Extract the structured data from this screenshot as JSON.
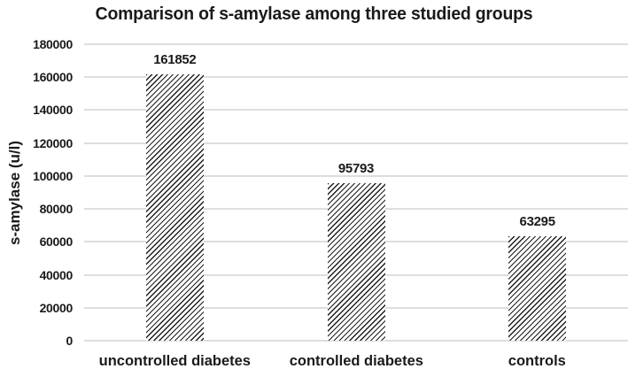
{
  "chart_data": {
    "type": "bar",
    "title": "Comparison of s-amylase among three studied groups",
    "categories": [
      "uncontrolled diabetes",
      "controlled diabetes",
      "controls"
    ],
    "values": [
      161852,
      95793,
      63295
    ],
    "data_labels": [
      "161852",
      "95793",
      "63295"
    ],
    "xlabel": "",
    "ylabel": "s-amylase (u/l)",
    "ylim": [
      0,
      180000
    ],
    "yticks": [
      0,
      20000,
      40000,
      60000,
      80000,
      100000,
      120000,
      140000,
      160000,
      180000
    ],
    "ytick_labels": [
      "0",
      "20000",
      "40000",
      "60000",
      "80000",
      "100000",
      "120000",
      "140000",
      "160000",
      "180000"
    ],
    "grid": true,
    "legend": "none",
    "bar_style": "diagonal-hatch",
    "colors": {
      "text": "#1a1a1a",
      "gridline": "#d9e0de",
      "hatch": "#1f1f1f",
      "background": "#ffffff"
    }
  }
}
